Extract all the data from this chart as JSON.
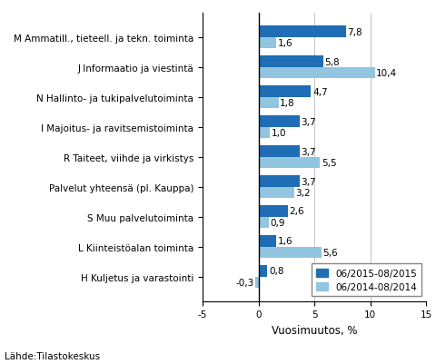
{
  "categories": [
    "M Ammatill., tieteell. ja tekn. toiminta",
    "J Informaatio ja viestintä",
    "N Hallinto- ja tukipalvelutoiminta",
    "I Majoitus- ja ravitsemistoiminta",
    "R Taiteet, viihde ja virkistys",
    "Palvelut yhteensä (pl. Kauppa)",
    "S Muu palvelutoiminta",
    "L Kiinteistöalan toiminta",
    "H Kuljetus ja varastointi"
  ],
  "series1_label": "06/2015-08/2015",
  "series2_label": "06/2014-08/2014",
  "series1_values": [
    7.8,
    5.8,
    4.7,
    3.7,
    3.7,
    3.7,
    2.6,
    1.6,
    0.8
  ],
  "series2_values": [
    1.6,
    10.4,
    1.8,
    1.0,
    5.5,
    3.2,
    0.9,
    5.6,
    -0.3
  ],
  "series1_color": "#1F6DB5",
  "series2_color": "#92C5E0",
  "xlim": [
    -5,
    15
  ],
  "xticks": [
    -5,
    0,
    5,
    10,
    15
  ],
  "xlabel": "Vuosimuutos, %",
  "footnote": "Lähde:Tilastokeskus",
  "bar_height": 0.38,
  "grid_color": "#aaaaaa",
  "background_color": "#ffffff",
  "label_fontsize": 7.5,
  "value_fontsize": 7.5,
  "legend_fontsize": 7.5,
  "xlabel_fontsize": 8.5,
  "footnote_fontsize": 7.5
}
